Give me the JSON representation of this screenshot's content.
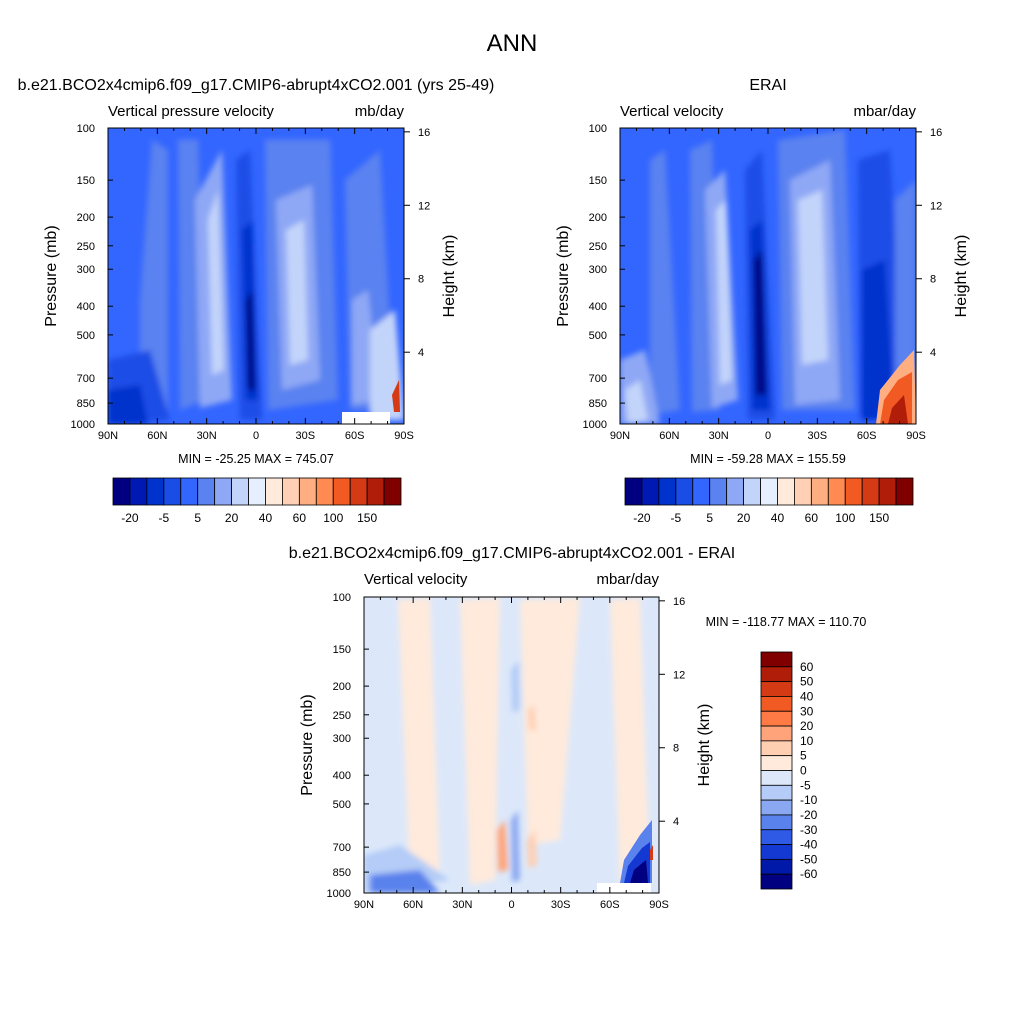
{
  "figure": {
    "title": "ANN"
  },
  "chart_data": [
    {
      "type": "heatmap",
      "title": "b.e21.BCO2x4cmip6.f09_g17.CMIP6-abrupt4xCO2.001 (yrs 25-49)",
      "left_string": "Vertical pressure velocity",
      "right_string": "mb/day",
      "xlabel": "",
      "ylabel": "Pressure (mb)",
      "ylabel_right": "Height (km)",
      "x_ticks": [
        "90N",
        "60N",
        "30N",
        "0",
        "30S",
        "60S",
        "90S"
      ],
      "y_ticks": [
        "100",
        "150",
        "200",
        "250",
        "300",
        "400",
        "500",
        "700",
        "850",
        "1000"
      ],
      "y_ticks_right": [
        "16",
        "12",
        "8",
        "4"
      ],
      "ylim": [
        1000,
        100
      ],
      "stats": "MIN = -25.25  MAX = 745.07",
      "colorbar": {
        "orientation": "horizontal",
        "labels": [
          "-20",
          "-5",
          "5",
          "20",
          "40",
          "60",
          "100",
          "150"
        ],
        "colors": [
          "#000080",
          "#0019b3",
          "#0033cc",
          "#1a4de6",
          "#3366ff",
          "#5a82f0",
          "#8fa8f5",
          "#c3d4fa",
          "#e6efff",
          "#ffeadc",
          "#ffd0b4",
          "#ffae82",
          "#ff8a52",
          "#f25a24",
          "#d43a14",
          "#b01e0a",
          "#800000"
        ]
      }
    },
    {
      "type": "heatmap",
      "title": "ERAI",
      "left_string": "Vertical velocity",
      "right_string": "mbar/day",
      "xlabel": "",
      "ylabel": "Pressure (mb)",
      "ylabel_right": "Height (km)",
      "x_ticks": [
        "90N",
        "60N",
        "30N",
        "0",
        "30S",
        "60S",
        "90S"
      ],
      "y_ticks": [
        "100",
        "150",
        "200",
        "250",
        "300",
        "400",
        "500",
        "700",
        "850",
        "1000"
      ],
      "y_ticks_right": [
        "16",
        "12",
        "8",
        "4"
      ],
      "ylim": [
        1000,
        100
      ],
      "stats": "MIN = -59.28  MAX = 155.59",
      "colorbar": {
        "orientation": "horizontal",
        "labels": [
          "-20",
          "-5",
          "5",
          "20",
          "40",
          "60",
          "100",
          "150"
        ],
        "colors": [
          "#000080",
          "#0019b3",
          "#0033cc",
          "#1a4de6",
          "#3366ff",
          "#5a82f0",
          "#8fa8f5",
          "#c3d4fa",
          "#e6efff",
          "#ffeadc",
          "#ffd0b4",
          "#ffae82",
          "#ff8a52",
          "#f25a24",
          "#d43a14",
          "#b01e0a",
          "#800000"
        ]
      }
    },
    {
      "type": "heatmap",
      "title": "b.e21.BCO2x4cmip6.f09_g17.CMIP6-abrupt4xCO2.001 - ERAI",
      "left_string": "Vertical velocity",
      "right_string": "mbar/day",
      "xlabel": "",
      "ylabel": "Pressure (mb)",
      "ylabel_right": "Height (km)",
      "x_ticks": [
        "90N",
        "60N",
        "30N",
        "0",
        "30S",
        "60S",
        "90S"
      ],
      "y_ticks": [
        "100",
        "150",
        "200",
        "250",
        "300",
        "400",
        "500",
        "700",
        "850",
        "1000"
      ],
      "y_ticks_right": [
        "16",
        "12",
        "8",
        "4"
      ],
      "ylim": [
        1000,
        100
      ],
      "stats": "MIN = -118.77  MAX = 110.70",
      "colorbar": {
        "orientation": "vertical",
        "labels": [
          "60",
          "50",
          "40",
          "30",
          "20",
          "10",
          "5",
          "0",
          "-5",
          "-10",
          "-20",
          "-30",
          "-40",
          "-50",
          "-60"
        ],
        "colors": [
          "#800000",
          "#b01e0a",
          "#d43a14",
          "#f25a24",
          "#ff7a45",
          "#ffa47a",
          "#ffcfb2",
          "#ffeadc",
          "#dce8fa",
          "#b4ccf7",
          "#8aa8f2",
          "#5a82ec",
          "#2e5ae6",
          "#1438d2",
          "#0019a8",
          "#000080"
        ]
      }
    }
  ]
}
